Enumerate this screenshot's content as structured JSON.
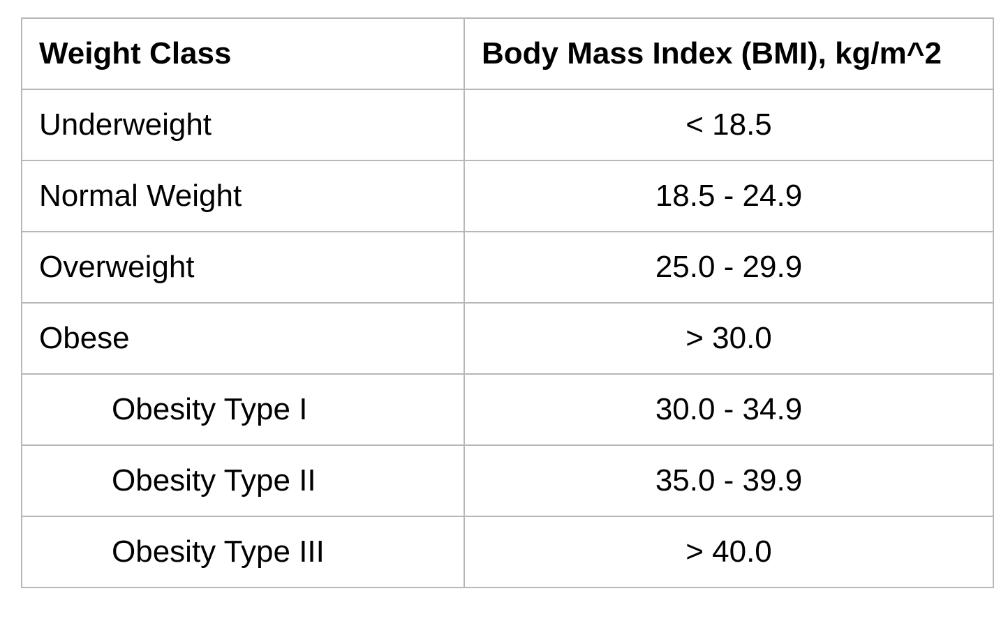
{
  "table": {
    "headers": {
      "weight_class": "Weight Class",
      "bmi": "Body Mass Index (BMI), kg/m^2"
    },
    "rows": [
      {
        "weight_class": "Underweight",
        "bmi": "< 18.5",
        "indented": false
      },
      {
        "weight_class": "Normal Weight",
        "bmi": "18.5 - 24.9",
        "indented": false
      },
      {
        "weight_class": "Overweight",
        "bmi": "25.0 - 29.9",
        "indented": false
      },
      {
        "weight_class": "Obese",
        "bmi": "> 30.0",
        "indented": false
      },
      {
        "weight_class": "Obesity Type I",
        "bmi": "30.0 - 34.9",
        "indented": true
      },
      {
        "weight_class": "Obesity Type II",
        "bmi": "35.0 - 39.9",
        "indented": true
      },
      {
        "weight_class": "Obesity Type III",
        "bmi": "> 40.0",
        "indented": true
      }
    ]
  }
}
